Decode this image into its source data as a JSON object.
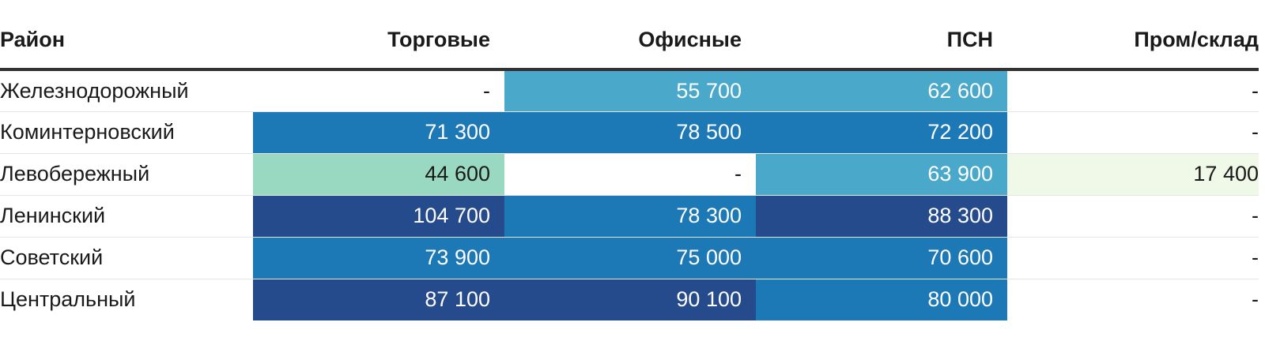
{
  "chart_data": {
    "type": "table",
    "columns": [
      "Район",
      "Торговые",
      "Офисные",
      "ПСН",
      "Пром/склад"
    ],
    "rows": [
      {
        "district": "Железнодорожный",
        "values": [
          null,
          55700,
          62600,
          null
        ],
        "display": [
          "-",
          "55 700",
          "62 600",
          "-"
        ]
      },
      {
        "district": "Коминтерновский",
        "values": [
          71300,
          78500,
          72200,
          null
        ],
        "display": [
          "71 300",
          "78 500",
          "72 200",
          "-"
        ]
      },
      {
        "district": "Левобережный",
        "values": [
          44600,
          null,
          63900,
          17400
        ],
        "display": [
          "44 600",
          "-",
          "63 900",
          "17 400"
        ]
      },
      {
        "district": "Ленинский",
        "values": [
          104700,
          78300,
          88300,
          null
        ],
        "display": [
          "104 700",
          "78 300",
          "88 300",
          "-"
        ]
      },
      {
        "district": "Советский",
        "values": [
          73900,
          75000,
          70600,
          null
        ],
        "display": [
          "73 900",
          "75 000",
          "70 600",
          "-"
        ]
      },
      {
        "district": "Центральный",
        "values": [
          87100,
          90100,
          80000,
          null
        ],
        "display": [
          "87 100",
          "90 100",
          "80 000",
          "-"
        ]
      }
    ],
    "color_scale": [
      {
        "max": 30000,
        "bg": "#f0f9e8",
        "fg": "#1a1a1a"
      },
      {
        "max": 50000,
        "bg": "#99d8c1",
        "fg": "#1a1a1a"
      },
      {
        "max": 70000,
        "bg": "#4aa8cb",
        "fg": "#ffffff"
      },
      {
        "max": 87000,
        "bg": "#1d78b6",
        "fg": "#ffffff"
      },
      {
        "max": 1000000,
        "bg": "#254b8c",
        "fg": "#ffffff"
      }
    ],
    "empty_cell": {
      "bg": "#ffffff",
      "fg": "#1a1a1a"
    }
  }
}
